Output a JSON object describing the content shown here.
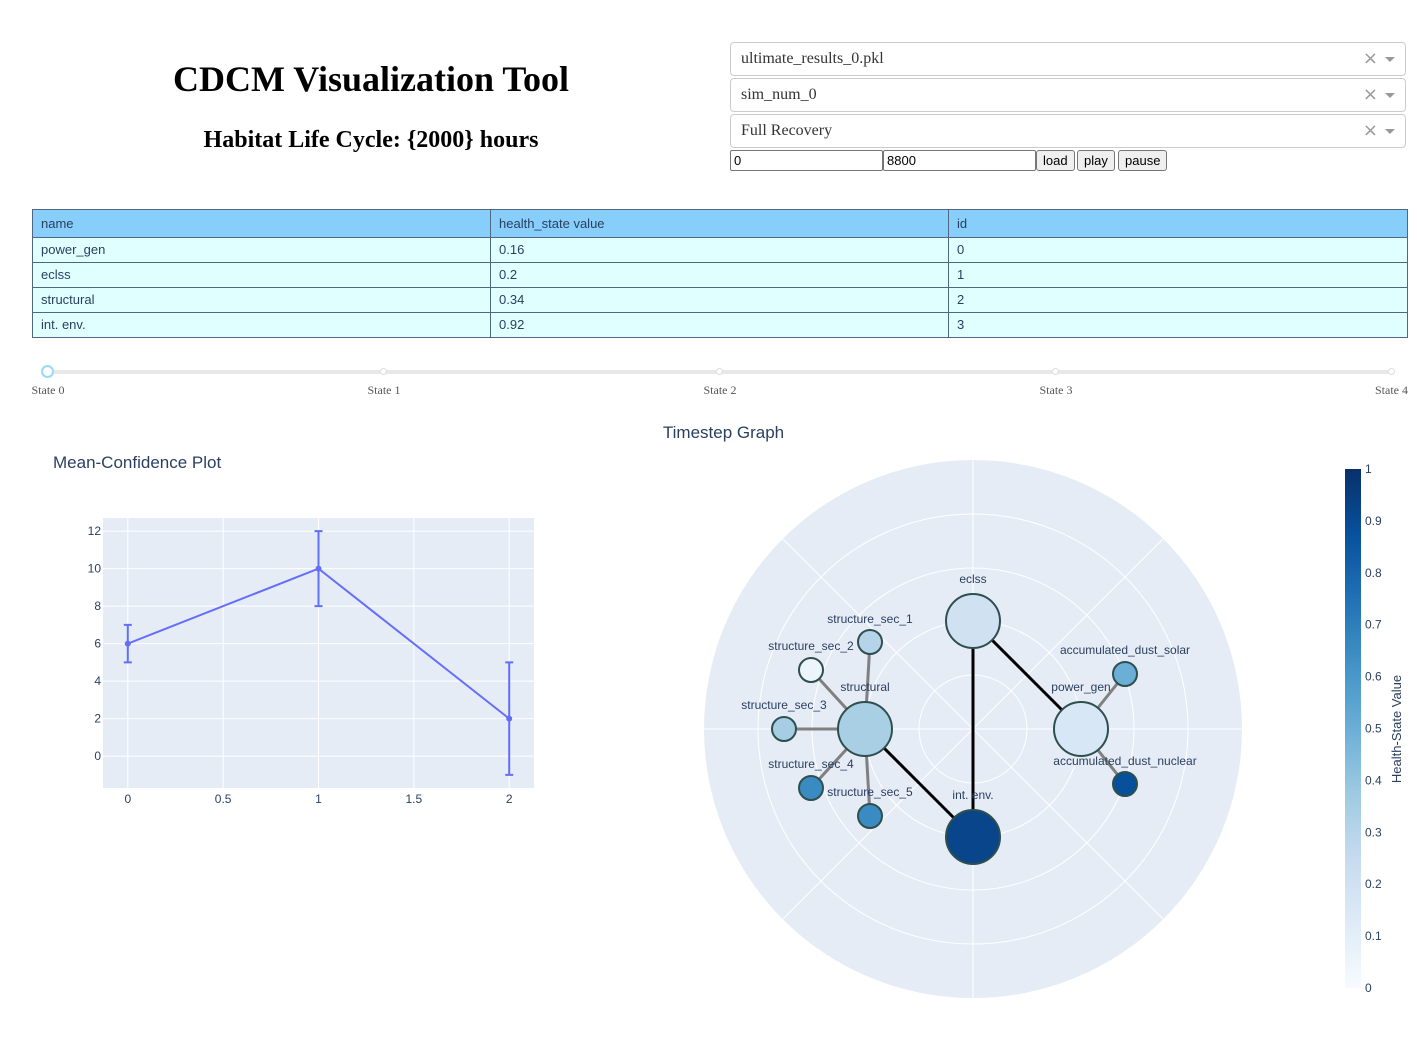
{
  "header": {
    "title": "CDCM Visualization Tool",
    "subtitle": "Habitat Life Cycle: {2000} hours"
  },
  "controls": {
    "file_dropdown": "ultimate_results_0.pkl",
    "sim_dropdown": "sim_num_0",
    "mode_dropdown": "Full Recovery",
    "clear_glyph": "×",
    "start_value": "0",
    "end_value": "8800",
    "load_label": "load",
    "play_label": "play",
    "pause_label": "pause"
  },
  "table": {
    "headers": [
      "name",
      "health_state value",
      "id"
    ],
    "rows": [
      [
        "power_gen",
        "0.16",
        "0"
      ],
      [
        "eclss",
        "0.2",
        "1"
      ],
      [
        "structural",
        "0.34",
        "2"
      ],
      [
        "int. env.",
        "0.92",
        "3"
      ]
    ],
    "header_color": "#87cefa",
    "cell_color": "#e0ffff"
  },
  "slider": {
    "labels": [
      "State 0",
      "State 1",
      "State 2",
      "State 3",
      "State 4"
    ],
    "selected_index": 0
  },
  "mean_plot": {
    "title": "Mean-Confidence Plot",
    "line_color": "#636efa"
  },
  "chart_data": [
    {
      "type": "line",
      "title": "Mean-Confidence Plot",
      "x": [
        0,
        1,
        2
      ],
      "y": [
        6,
        10,
        2
      ],
      "error_low": [
        5,
        8,
        -1
      ],
      "error_high": [
        7,
        12,
        5
      ],
      "xticks": [
        "0",
        "0.5",
        "1",
        "1.5",
        "2"
      ],
      "xtick_values": [
        0,
        0.5,
        1,
        1.5,
        2
      ],
      "yticks": [
        "0",
        "2",
        "4",
        "6",
        "8",
        "10",
        "12"
      ],
      "ytick_values": [
        0,
        2,
        4,
        6,
        8,
        10,
        12
      ],
      "xlim": [
        -0.13,
        2.13
      ],
      "ylim": [
        -1.7,
        12.7
      ],
      "grid": true
    },
    {
      "type": "network",
      "title": "Timestep Graph",
      "colorbar_title": "Health-State Value",
      "colorbar_ticks": [
        "0",
        "0.1",
        "0.2",
        "0.3",
        "0.4",
        "0.5",
        "0.6",
        "0.7",
        "0.8",
        "0.9",
        "1"
      ],
      "colorscale": "Blues",
      "nodes": [
        {
          "label": "eclss",
          "value": 0.2
        },
        {
          "label": "power_gen",
          "value": 0.16
        },
        {
          "label": "structural",
          "value": 0.34
        },
        {
          "label": "int. env.",
          "value": 0.92
        },
        {
          "label": "structure_sec_1",
          "value": 0.3
        },
        {
          "label": "structure_sec_2",
          "value": 0.05
        },
        {
          "label": "structure_sec_3",
          "value": 0.35
        },
        {
          "label": "structure_sec_4",
          "value": 0.65
        },
        {
          "label": "structure_sec_5",
          "value": 0.65
        },
        {
          "label": "accumulated_dust_solar",
          "value": 0.5
        },
        {
          "label": "accumulated_dust_nuclear",
          "value": 0.88
        }
      ],
      "edges": [
        {
          "from": "eclss",
          "to": "int. env.",
          "kind": "main"
        },
        {
          "from": "eclss",
          "to": "power_gen",
          "kind": "main"
        },
        {
          "from": "structural",
          "to": "int. env.",
          "kind": "main"
        },
        {
          "from": "structural",
          "to": "structure_sec_1",
          "kind": "sub"
        },
        {
          "from": "structural",
          "to": "structure_sec_2",
          "kind": "sub"
        },
        {
          "from": "structural",
          "to": "structure_sec_3",
          "kind": "sub"
        },
        {
          "from": "structural",
          "to": "structure_sec_4",
          "kind": "sub"
        },
        {
          "from": "structural",
          "to": "structure_sec_5",
          "kind": "sub"
        },
        {
          "from": "power_gen",
          "to": "accumulated_dust_solar",
          "kind": "sub"
        },
        {
          "from": "power_gen",
          "to": "accumulated_dust_nuclear",
          "kind": "sub"
        }
      ]
    }
  ]
}
